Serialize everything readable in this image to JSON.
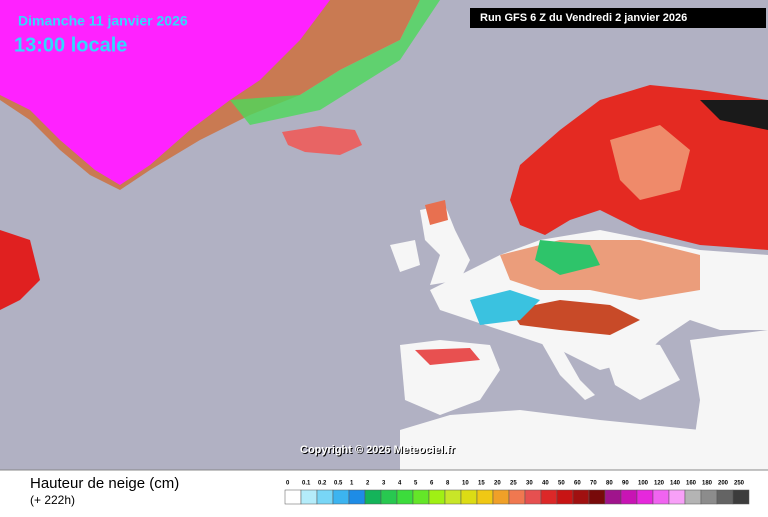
{
  "header": {
    "date": "Dimanche 11 janvier 2026",
    "time": "13:00 locale",
    "run": "Run GFS 6 Z du Vendredi 2 janvier 2026"
  },
  "copyright": "Copyright © 2026 Meteociel.fr",
  "footer": {
    "title": "Hauteur de neige (cm)",
    "lead": "(+ 222h)"
  },
  "legend": {
    "labels": [
      "0",
      "0.1",
      "0.2",
      "0.5",
      "1",
      "2",
      "3",
      "4",
      "5",
      "6",
      "8",
      "10",
      "15",
      "20",
      "25",
      "30",
      "40",
      "50",
      "60",
      "70",
      "80",
      "90",
      "100",
      "120",
      "140",
      "160",
      "180",
      "200",
      "250"
    ]
  }
}
